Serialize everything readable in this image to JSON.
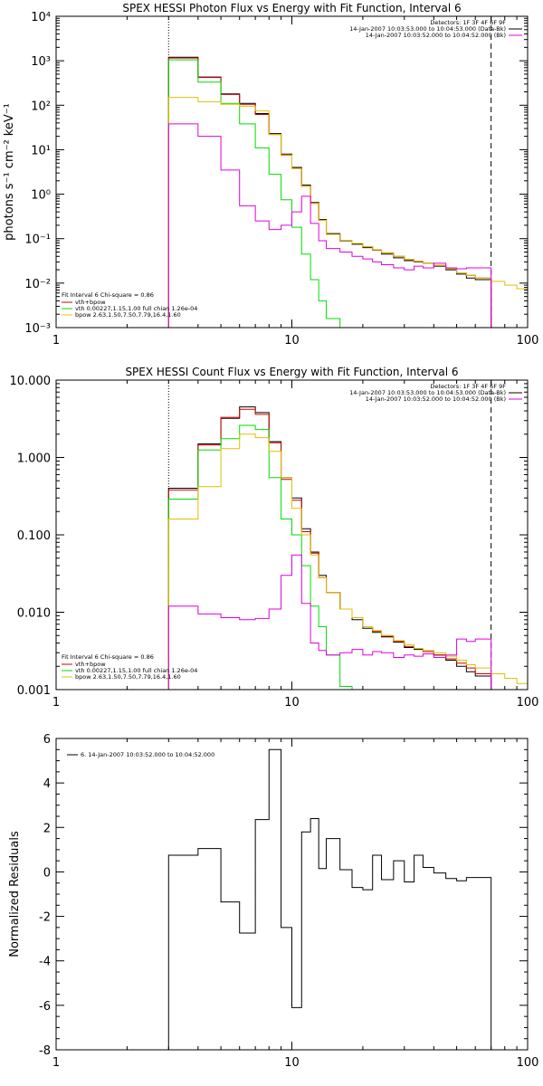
{
  "colors": {
    "data": "#000000",
    "total": "#d40000",
    "vth": "#00dd00",
    "bpow": "#e0c000",
    "bkg": "#e000e0"
  },
  "chart_data": [
    {
      "type": "line",
      "step": true,
      "title": "SPEX HESSI Photon Flux vs Energy with Fit Function, Interval 6",
      "xlabel": "",
      "ylabel": "photons s⁻¹ cm⁻² keV⁻¹",
      "xscale": "log",
      "yscale": "log",
      "xlim": [
        1,
        100
      ],
      "ylim": [
        0.001,
        10000
      ],
      "xticks": [
        1,
        10,
        100
      ],
      "xticklabels": [
        "1",
        "10",
        "100"
      ],
      "yticks": [
        0.001,
        0.01,
        0.1,
        1,
        10,
        100,
        1000,
        10000
      ],
      "yticklabels": [
        "10⁻³",
        "10⁻²",
        "10⁻¹",
        "10⁰",
        "10¹",
        "10²",
        "10³",
        "10⁴"
      ],
      "vlines": [
        {
          "x": 3,
          "style": "dotted"
        },
        {
          "x": 70,
          "style": "dashed"
        }
      ],
      "header": [
        "Detectors: 1F 3F 4F 6F 9F",
        "14-Jan-2007 10:03:53.000 to 10:04:53.000 (Data-Bk)",
        "14-Jan-2007 10:03:52.000 to 10:04:52.000 (Bk)"
      ],
      "fit_legend": {
        "title": "Fit Interval  6    Chi-square = 0.86",
        "items": [
          "vth+bpow",
          "vth 0.00227,1.15,1.00  full chian 1.26e-04",
          "bpow 2.63,1.50,7.50,7.79,16.4,1.60"
        ]
      },
      "edges": [
        3,
        4,
        5,
        6,
        7,
        8,
        9,
        10,
        11,
        12,
        13,
        14,
        16,
        18,
        20,
        22,
        24,
        27,
        30,
        33,
        36,
        40,
        45,
        50,
        55,
        60,
        70,
        80,
        90,
        100
      ],
      "series": [
        {
          "name": "Data-Bk",
          "color_key": "data",
          "values": [
            1200,
            430,
            180,
            110,
            65,
            23,
            8,
            4,
            1.6,
            0.65,
            0.27,
            0.13,
            0.09,
            0.075,
            0.063,
            0.055,
            0.045,
            0.037,
            0.032,
            0.03,
            0.028,
            0.024,
            0.02,
            0.016,
            0.013,
            0.012,
            null,
            null,
            null
          ]
        },
        {
          "name": "vth+bpow",
          "color_key": "total",
          "values": [
            1150,
            420,
            175,
            105,
            62,
            22,
            7.5,
            3.8,
            1.5,
            0.62,
            0.26,
            0.125,
            0.092,
            0.078,
            0.066,
            0.056,
            0.048,
            0.04,
            0.034,
            0.031,
            0.028,
            0.025,
            0.021,
            0.017,
            0.015,
            0.013,
            null,
            null,
            null
          ]
        },
        {
          "name": "vth",
          "color_key": "vth",
          "values": [
            1050,
            330,
            110,
            38,
            11,
            2.8,
            0.75,
            0.18,
            0.045,
            0.012,
            0.004,
            0.0016,
            null,
            null,
            null,
            null,
            null,
            null,
            null,
            null,
            null,
            null,
            null,
            null,
            null,
            null,
            null,
            null,
            null
          ]
        },
        {
          "name": "bpow",
          "color_key": "bpow",
          "values": [
            150,
            120,
            105,
            95,
            75,
            22,
            7.6,
            3.8,
            1.5,
            0.62,
            0.26,
            0.125,
            0.092,
            0.078,
            0.066,
            0.056,
            0.048,
            0.04,
            0.034,
            0.031,
            0.028,
            0.025,
            0.021,
            0.017,
            0.015,
            0.013,
            0.011,
            0.009,
            0.0075
          ]
        },
        {
          "name": "Bk",
          "color_key": "bkg",
          "values": [
            38,
            20,
            3.5,
            0.55,
            0.25,
            0.16,
            0.2,
            0.4,
            0.9,
            0.22,
            0.09,
            0.06,
            0.05,
            0.04,
            0.035,
            0.03,
            0.026,
            0.022,
            0.02,
            0.024,
            0.022,
            0.028,
            0.022,
            0.021,
            0.022,
            0.022,
            null,
            null,
            null
          ]
        }
      ]
    },
    {
      "type": "line",
      "step": true,
      "title": "SPEX HESSI Count Flux vs Energy with Fit Function, Interval 6",
      "xlabel": "",
      "ylabel": "",
      "xscale": "log",
      "yscale": "log",
      "xlim": [
        1,
        100
      ],
      "ylim": [
        0.001,
        10
      ],
      "xticks": [
        1,
        10,
        100
      ],
      "xticklabels": [
        "1",
        "10",
        "100"
      ],
      "yticks": [
        0.001,
        0.01,
        0.1,
        1,
        10
      ],
      "yticklabels": [
        "0.001",
        "0.010",
        "0.100",
        "1.000",
        "10.000"
      ],
      "vlines": [
        {
          "x": 3,
          "style": "dotted"
        },
        {
          "x": 70,
          "style": "dashed"
        }
      ],
      "header": [
        "Detectors: 1F 3F 4F 6F 9F",
        "14-Jan-2007 10:03:53.000 to 10:04:53.000 (Data-Bk)",
        "14-Jan-2007 10:03:52.000 to 10:04:52.000 (Bk)"
      ],
      "fit_legend": {
        "title": "Fit Interval  6    Chi-square = 0.86",
        "items": [
          "vth+bpow",
          "vth 0.00227,1.15,1.00  full chian 1.26e-04",
          "bpow 2.63,1.50,7.50,7.79,16.4,1.60"
        ]
      },
      "edges": [
        3,
        4,
        5,
        6,
        7,
        8,
        9,
        10,
        11,
        12,
        13,
        14,
        16,
        18,
        20,
        22,
        24,
        27,
        30,
        33,
        36,
        40,
        45,
        50,
        55,
        60,
        70,
        80,
        90,
        100
      ],
      "series": [
        {
          "name": "Data-Bk",
          "color_key": "data",
          "values": [
            0.4,
            1.5,
            3.2,
            4.5,
            3.8,
            1.6,
            0.55,
            0.3,
            0.12,
            0.06,
            0.03,
            0.018,
            0.011,
            0.008,
            0.0062,
            0.0055,
            0.0048,
            0.0041,
            0.0035,
            0.0033,
            0.0031,
            0.0028,
            0.0024,
            0.002,
            0.0017,
            0.0015,
            null,
            null,
            null
          ]
        },
        {
          "name": "vth+bpow",
          "color_key": "total",
          "values": [
            0.38,
            1.45,
            3.3,
            4.2,
            3.6,
            1.55,
            0.52,
            0.28,
            0.11,
            0.058,
            0.028,
            0.018,
            0.011,
            0.0085,
            0.0065,
            0.0057,
            0.0049,
            0.0042,
            0.0036,
            0.0034,
            0.0031,
            0.0028,
            0.0025,
            0.0022,
            0.0019,
            0.0016,
            null,
            null,
            null
          ]
        },
        {
          "name": "vth",
          "color_key": "vth",
          "values": [
            0.29,
            1.25,
            1.75,
            2.6,
            2.3,
            0.55,
            0.16,
            0.1,
            0.04,
            0.012,
            0.0065,
            0.0028,
            0.0011,
            null,
            null,
            null,
            null,
            null,
            null,
            null,
            null,
            null,
            null,
            null,
            null,
            null,
            null,
            null,
            null
          ]
        },
        {
          "name": "bpow",
          "color_key": "bpow",
          "values": [
            0.16,
            0.42,
            1.3,
            2.0,
            1.8,
            1.2,
            0.55,
            0.22,
            0.1,
            0.055,
            0.028,
            0.018,
            0.011,
            0.0085,
            0.0065,
            0.0058,
            0.005,
            0.0043,
            0.0038,
            0.0034,
            0.0032,
            0.003,
            0.0027,
            0.0024,
            0.0021,
            0.0019,
            0.0016,
            0.0014,
            0.0012
          ]
        },
        {
          "name": "Bk",
          "color_key": "bkg",
          "values": [
            0.012,
            0.0095,
            0.0085,
            0.008,
            0.0083,
            0.011,
            0.03,
            0.055,
            0.013,
            0.004,
            0.0032,
            0.0028,
            0.003,
            0.0033,
            0.0028,
            0.0031,
            0.003,
            0.0026,
            0.0028,
            0.0027,
            0.0029,
            0.0026,
            0.0028,
            0.0045,
            0.0042,
            0.0045,
            null,
            null,
            null
          ]
        }
      ]
    },
    {
      "type": "line",
      "step": true,
      "title": "",
      "xlabel": "",
      "ylabel": "Normalized Residuals",
      "xscale": "log",
      "yscale": "linear",
      "xlim": [
        1,
        100
      ],
      "ylim": [
        -8,
        6
      ],
      "xticks": [
        1,
        10,
        100
      ],
      "xticklabels": [
        "1",
        "10",
        "100"
      ],
      "yticks": [
        -8,
        -6,
        -4,
        -2,
        0,
        2,
        4,
        6
      ],
      "yticklabels": [
        "-8",
        "-6",
        "-4",
        "-2",
        "0",
        "2",
        "4",
        "6"
      ],
      "legend": [
        {
          "color_key": "data",
          "label": "6. 14-Jan-2007 10:03:52.000 to 10:04:52.000"
        }
      ],
      "edges": [
        3,
        4,
        5,
        6,
        7,
        8,
        9,
        10,
        11,
        12,
        13,
        14,
        16,
        18,
        20,
        22,
        24,
        27,
        30,
        33,
        36,
        40,
        45,
        50,
        55,
        60,
        70
      ],
      "series": [
        {
          "name": "",
          "color_key": "data",
          "values": [
            0.75,
            1.05,
            -1.35,
            -2.75,
            2.35,
            5.5,
            -2.5,
            -6.1,
            1.8,
            2.4,
            0.15,
            1.5,
            0.1,
            -0.7,
            -0.8,
            0.75,
            -0.35,
            0.5,
            -0.45,
            0.75,
            0.2,
            -0.05,
            -0.3,
            -0.4,
            -0.25,
            -0.25
          ]
        }
      ]
    }
  ]
}
